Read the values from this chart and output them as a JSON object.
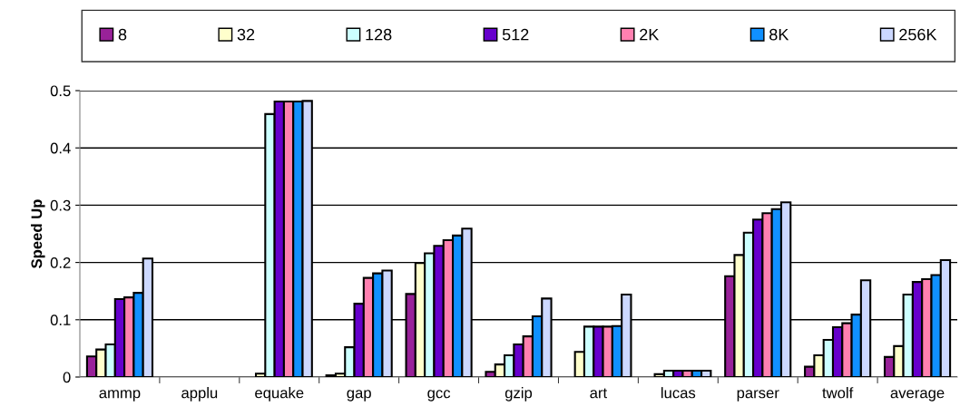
{
  "chart_data": {
    "type": "bar",
    "ylabel": "Speed Up",
    "categories": [
      "ammp",
      "applu",
      "equake",
      "gap",
      "gcc",
      "gzip",
      "art",
      "lucas",
      "parser",
      "twolf",
      "average"
    ],
    "ylim": [
      0,
      0.5
    ],
    "yticks": [
      0,
      0.1,
      0.2,
      0.3,
      0.4,
      0.5
    ],
    "grid": "y",
    "legend": "top",
    "series": [
      {
        "name": "8",
        "color": "#992299",
        "values": [
          0.036,
          null,
          null,
          0.003,
          0.145,
          0.009,
          null,
          null,
          0.176,
          0.018,
          0.035
        ]
      },
      {
        "name": "32",
        "color": "#ffffcc",
        "values": [
          0.048,
          null,
          0.006,
          0.006,
          0.199,
          0.022,
          0.044,
          0.005,
          0.213,
          0.038,
          0.054
        ]
      },
      {
        "name": "128",
        "color": "#ccffff",
        "values": [
          0.057,
          null,
          0.459,
          0.052,
          0.216,
          0.038,
          0.088,
          0.011,
          0.252,
          0.065,
          0.144
        ]
      },
      {
        "name": "512",
        "color": "#6600cc",
        "values": [
          0.136,
          null,
          0.481,
          0.128,
          0.229,
          0.057,
          0.088,
          0.011,
          0.275,
          0.087,
          0.166
        ]
      },
      {
        "name": "2K",
        "color": "#ff80b0",
        "values": [
          0.139,
          null,
          0.481,
          0.173,
          0.239,
          0.071,
          0.088,
          0.011,
          0.286,
          0.094,
          0.171
        ]
      },
      {
        "name": "8K",
        "color": "#1090ff",
        "values": [
          0.147,
          null,
          0.481,
          0.181,
          0.247,
          0.106,
          0.089,
          0.011,
          0.293,
          0.109,
          0.178
        ]
      },
      {
        "name": "256K",
        "color": "#ccd8ff",
        "values": [
          0.207,
          null,
          0.482,
          0.186,
          0.259,
          0.137,
          0.144,
          0.011,
          0.305,
          0.169,
          0.204
        ]
      }
    ]
  }
}
